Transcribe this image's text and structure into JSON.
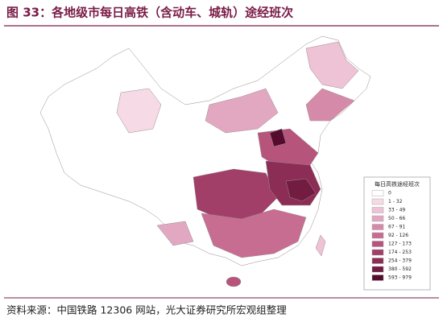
{
  "header": {
    "title": "图 33：各地级市每日高铁（含动车、城轨）途经班次"
  },
  "legend": {
    "title": "每日高铁途经班次",
    "items": [
      {
        "label": "0",
        "color": "#ffffff"
      },
      {
        "label": "1 - 32",
        "color": "#f6dbe6"
      },
      {
        "label": "33 - 49",
        "color": "#eec3d5"
      },
      {
        "label": "50 - 66",
        "color": "#e3a8c1"
      },
      {
        "label": "67 - 91",
        "color": "#d68aa9"
      },
      {
        "label": "92 - 126",
        "color": "#c76d91"
      },
      {
        "label": "127 - 173",
        "color": "#b6547c"
      },
      {
        "label": "174 - 253",
        "color": "#a23f68"
      },
      {
        "label": "254 - 379",
        "color": "#8c2d55"
      },
      {
        "label": "380 - 592",
        "color": "#721c42"
      },
      {
        "label": "593 - 979",
        "color": "#550b2d"
      }
    ]
  },
  "footer": {
    "source": "资料来源：中国铁路 12306 网站，光大证券研究所宏观组整理"
  }
}
